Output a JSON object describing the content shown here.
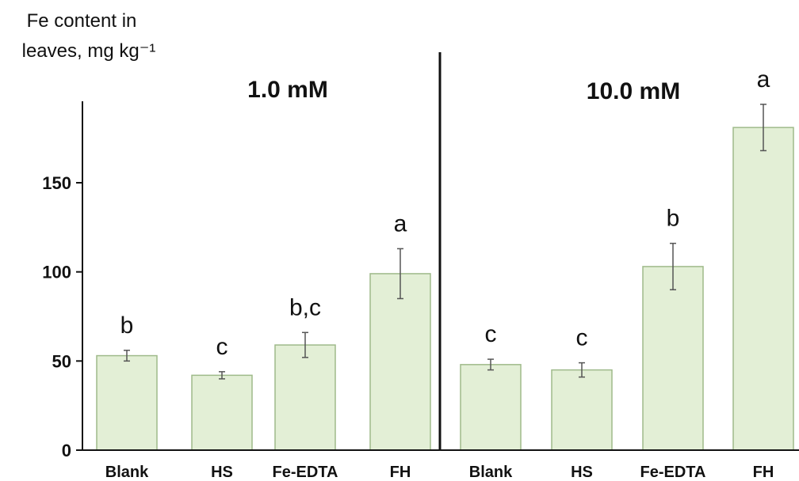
{
  "chart_data": {
    "type": "bar",
    "ylabel_lines": [
      "Fe content in",
      "leaves, mg kg⁻¹"
    ],
    "ylim": [
      0,
      195
    ],
    "yticks": [
      0,
      50,
      100,
      150
    ],
    "grid": false,
    "panels": [
      {
        "label": "1.0 mM",
        "categories": [
          "Blank",
          "HS",
          "Fe-EDTA",
          "FH"
        ],
        "values": [
          53,
          42,
          59,
          99
        ],
        "errors": [
          3,
          2,
          7,
          14
        ],
        "significance": [
          "b",
          "c",
          "b,c",
          "a"
        ]
      },
      {
        "label": "10.0 mM",
        "categories": [
          "Blank",
          "HS",
          "Fe-EDTA",
          "FH"
        ],
        "values": [
          48,
          45,
          103,
          181
        ],
        "errors": [
          3,
          4,
          13,
          13
        ],
        "significance": [
          "c",
          "c",
          "b",
          "a"
        ]
      }
    ],
    "colors": {
      "bar_fill": "#e3efd6",
      "bar_stroke": "#9fba8a",
      "error_bar": "#555555"
    }
  }
}
